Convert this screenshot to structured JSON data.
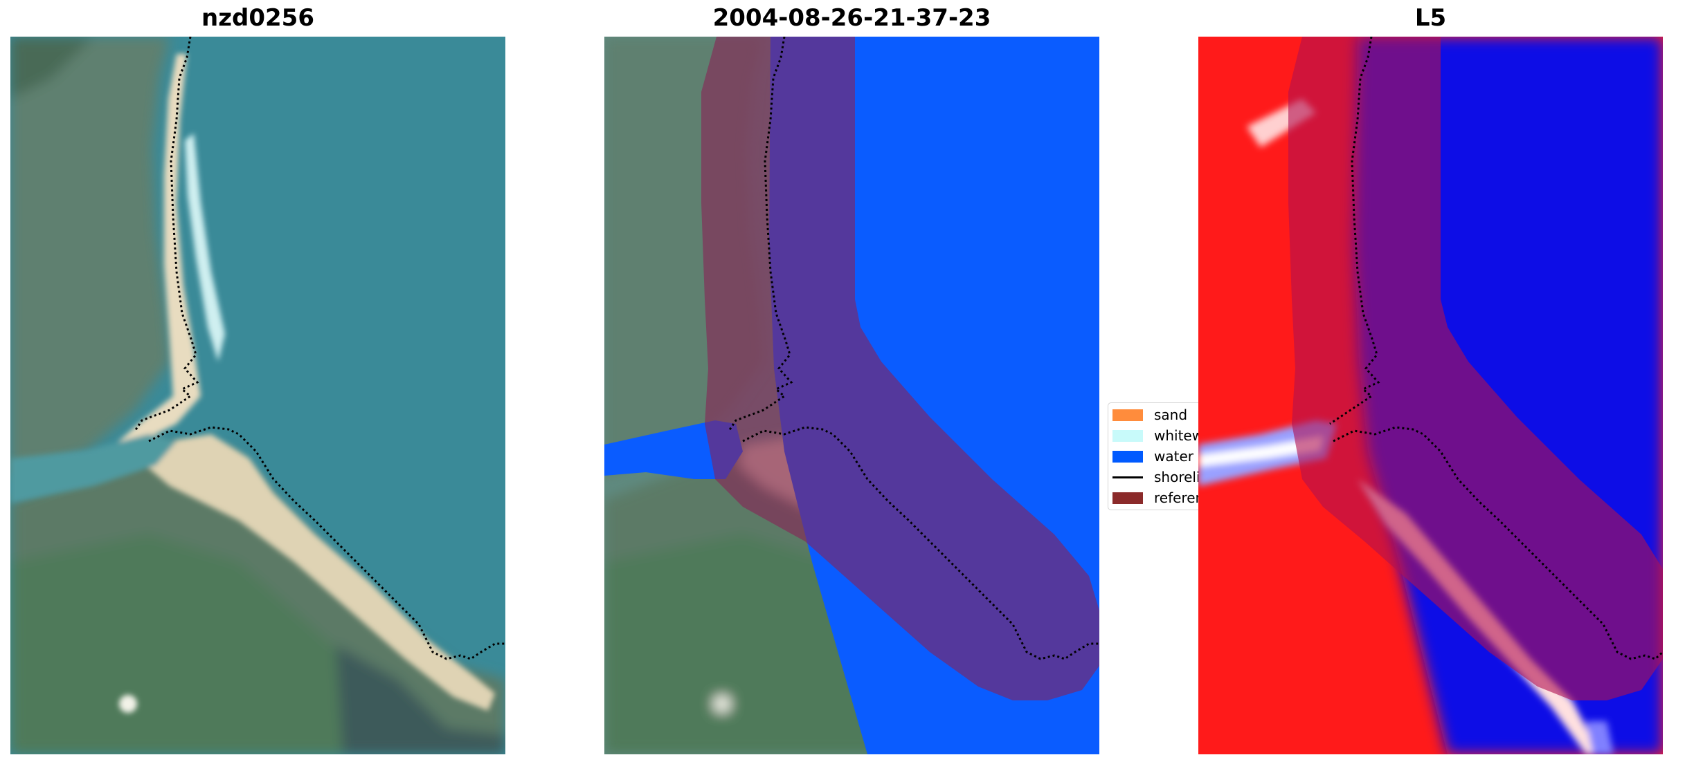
{
  "panels": [
    {
      "title": "nzd0256"
    },
    {
      "title": "2004-08-26-21-37-23"
    },
    {
      "title": "L5"
    }
  ],
  "legend": {
    "items": [
      {
        "label": "sand",
        "color": "#ff8c3c",
        "kind": "patch"
      },
      {
        "label": "whitewater",
        "color": "#c8fafa",
        "kind": "patch"
      },
      {
        "label": "water",
        "color": "#005aff",
        "kind": "patch"
      },
      {
        "label": "shoreline",
        "color": "#000000",
        "kind": "line"
      },
      {
        "label": "reference",
        "color": "#8b2a2a",
        "kind": "patch"
      }
    ]
  },
  "colors": {
    "water_class": "#0a5cff",
    "buffer_overlay": "#8a1f54",
    "index_positive": "#ff1a1a",
    "index_negative": "#1010e6"
  }
}
